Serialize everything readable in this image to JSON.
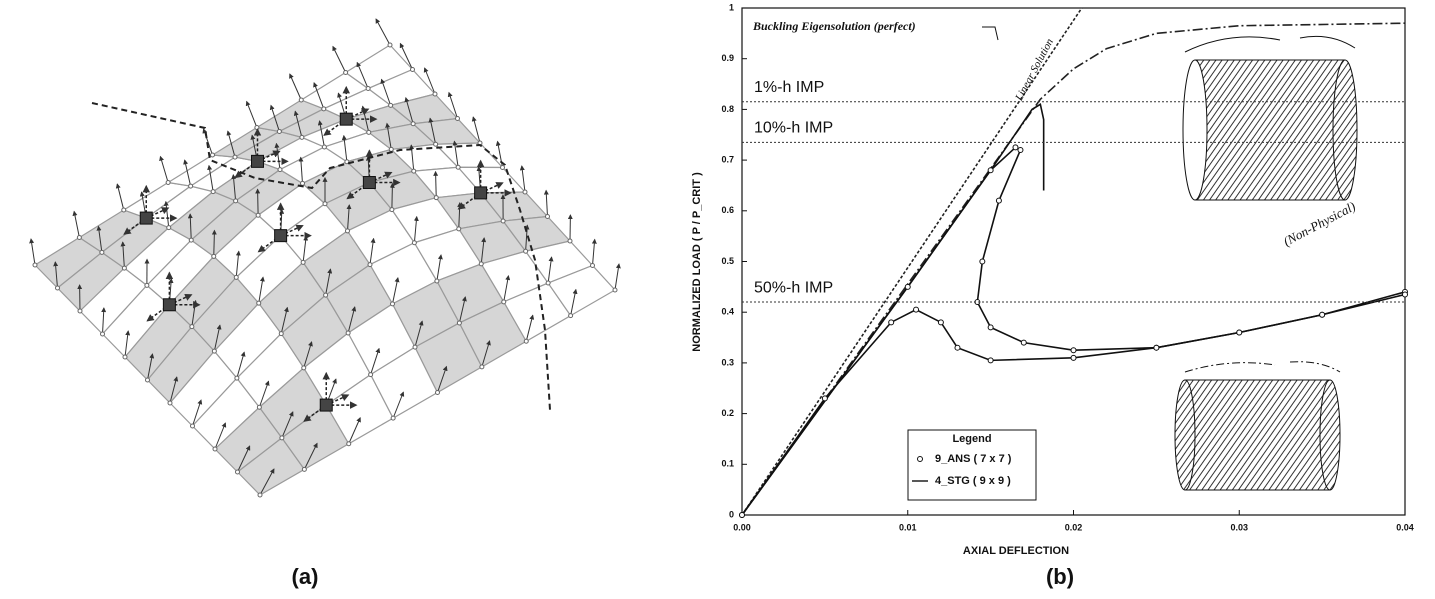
{
  "panel_labels": [
    "(a)",
    "(b)"
  ],
  "chart_data": {
    "type": "line",
    "xlabel": "AXIAL DEFLECTION",
    "ylabel": "NORMALIZED LOAD ( P / P_CRIT )",
    "xlim": [
      0,
      0.04
    ],
    "ylim": [
      0,
      1
    ],
    "xticks": [
      {
        "value": 0,
        "label": "0.00"
      },
      {
        "value": 0.01,
        "label": "0.01"
      },
      {
        "value": 0.02,
        "label": "0.02"
      },
      {
        "value": 0.03,
        "label": "0.03"
      },
      {
        "value": 0.04,
        "label": "0.04"
      }
    ],
    "yticks": [
      0,
      0.1,
      0.2,
      0.3,
      0.4,
      0.5,
      0.6,
      0.7,
      0.8,
      0.9,
      1
    ],
    "series": [
      {
        "name": "Linear Solution",
        "color": "#222222",
        "style": "dashed",
        "x": [
          0,
          0.0205
        ],
        "values": [
          0,
          1
        ]
      },
      {
        "name": "Buckling Eigensolution (perfect)",
        "color": "#222222",
        "style": "dashdot",
        "x": [
          0,
          0.018,
          0.02,
          0.022,
          0.025,
          0.03,
          0.04
        ],
        "values": [
          0,
          0.82,
          0.88,
          0.92,
          0.95,
          0.965,
          0.97
        ]
      },
      {
        "name": "1%-h IMP",
        "color": "#111111",
        "style": "solid",
        "level": 0.815,
        "x": [
          0,
          0.01,
          0.015,
          0.0175,
          0.018,
          0.0182,
          0.0182
        ],
        "values": [
          0,
          0.45,
          0.68,
          0.8,
          0.81,
          0.78,
          0.64
        ]
      },
      {
        "name": "10%-h IMP",
        "color": "#111111",
        "style": "solid",
        "marker": "circle",
        "level": 0.735,
        "x": [
          0,
          0.01,
          0.015,
          0.0165,
          0.0168,
          0.0155,
          0.0145,
          0.0142,
          0.015,
          0.017,
          0.02,
          0.025,
          0.03,
          0.035,
          0.04
        ],
        "values": [
          0,
          0.45,
          0.68,
          0.725,
          0.72,
          0.62,
          0.5,
          0.42,
          0.37,
          0.34,
          0.325,
          0.33,
          0.36,
          0.395,
          0.44
        ]
      },
      {
        "name": "50%-h IMP",
        "color": "#111111",
        "style": "solid",
        "marker": "circle",
        "level": 0.42,
        "x": [
          0,
          0.005,
          0.009,
          0.0105,
          0.012,
          0.013,
          0.015,
          0.02,
          0.025,
          0.03,
          0.035,
          0.04
        ],
        "values": [
          0,
          0.23,
          0.38,
          0.405,
          0.38,
          0.33,
          0.305,
          0.31,
          0.33,
          0.36,
          0.395,
          0.435
        ]
      }
    ],
    "annotations": [
      "(Non-Physical)"
    ],
    "legend": {
      "title": "Legend",
      "entries": [
        "9_ANS ( 7 x 7 )",
        "4_STG ( 9 x 9 )"
      ]
    }
  }
}
